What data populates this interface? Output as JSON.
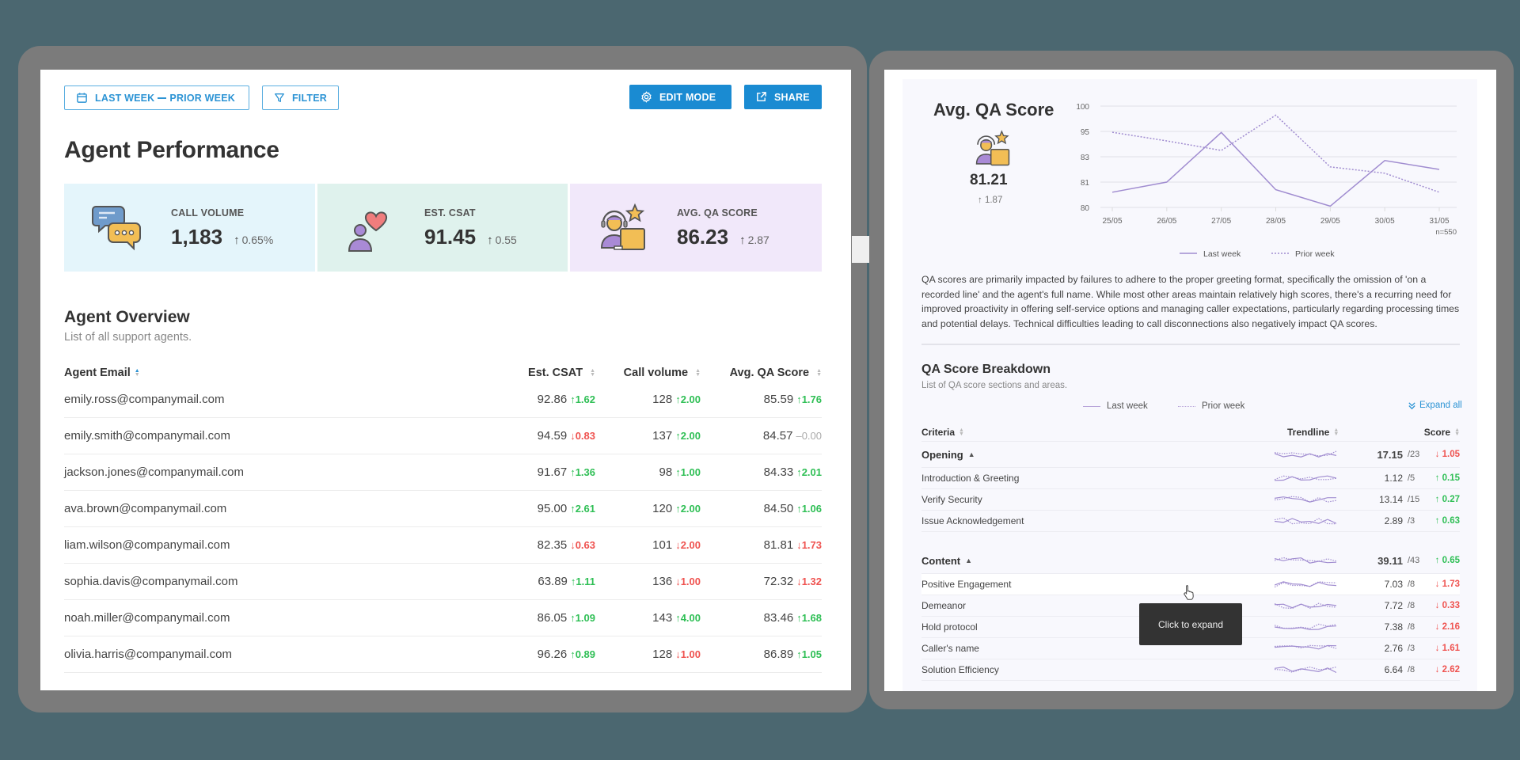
{
  "colors": {
    "accent": "#1a8bd2",
    "positive": "#2fbf55",
    "negative": "#ef5350",
    "neutral": "#aaaaaa",
    "chart_line": "#a08cd0",
    "kpi_call_volume_bg": "#e4f5fb",
    "kpi_csat_bg": "#dff2ed",
    "kpi_qa_bg": "#f1e8fa"
  },
  "toolbar": {
    "date_range_from": "LAST WEEK",
    "date_range_to": "PRIOR WEEK",
    "date_icon": "calendar-icon",
    "filter_label": "FILTER",
    "filter_icon": "funnel-icon",
    "edit_mode_label": "EDIT MODE",
    "edit_mode_icon": "gear-icon",
    "share_label": "SHARE",
    "share_icon": "external-link-icon"
  },
  "page": {
    "title": "Agent Performance"
  },
  "kpis": [
    {
      "label": "CALL VOLUME",
      "value": "1,183",
      "delta": "0.65%",
      "direction": "up",
      "icon": "chat-bubbles-icon"
    },
    {
      "label": "EST. CSAT",
      "value": "91.45",
      "delta": "0.55",
      "direction": "up",
      "icon": "person-heart-icon"
    },
    {
      "label": "AVG. QA SCORE",
      "value": "86.23",
      "delta": "2.87",
      "direction": "up",
      "icon": "agent-star-icon"
    }
  ],
  "overview": {
    "title": "Agent Overview",
    "subtitle": "List of all support agents.",
    "columns": [
      "Agent Email",
      "Est. CSAT",
      "Call volume",
      "Avg. QA Score"
    ],
    "rows": [
      {
        "email": "emily.ross@companymail.com",
        "csat": "92.86",
        "csat_d": "1.62",
        "csat_dir": "up",
        "vol": "128",
        "vol_d": "2.00",
        "vol_dir": "up",
        "qa": "85.59",
        "qa_d": "1.76",
        "qa_dir": "up"
      },
      {
        "email": "emily.smith@companymail.com",
        "csat": "94.59",
        "csat_d": "0.83",
        "csat_dir": "down",
        "vol": "137",
        "vol_d": "2.00",
        "vol_dir": "up",
        "qa": "84.57",
        "qa_d": "0.00",
        "qa_dir": "flat"
      },
      {
        "email": "jackson.jones@companymail.com",
        "csat": "91.67",
        "csat_d": "1.36",
        "csat_dir": "up",
        "vol": "98",
        "vol_d": "1.00",
        "vol_dir": "up",
        "qa": "84.33",
        "qa_d": "2.01",
        "qa_dir": "up"
      },
      {
        "email": "ava.brown@companymail.com",
        "csat": "95.00",
        "csat_d": "2.61",
        "csat_dir": "up",
        "vol": "120",
        "vol_d": "2.00",
        "vol_dir": "up",
        "qa": "84.50",
        "qa_d": "1.06",
        "qa_dir": "up"
      },
      {
        "email": "liam.wilson@companymail.com",
        "csat": "82.35",
        "csat_d": "0.63",
        "csat_dir": "down",
        "vol": "101",
        "vol_d": "2.00",
        "vol_dir": "down",
        "qa": "81.81",
        "qa_d": "1.73",
        "qa_dir": "down"
      },
      {
        "email": "sophia.davis@companymail.com",
        "csat": "63.89",
        "csat_d": "1.11",
        "csat_dir": "up",
        "vol": "136",
        "vol_d": "1.00",
        "vol_dir": "down",
        "qa": "72.32",
        "qa_d": "1.32",
        "qa_dir": "down"
      },
      {
        "email": "noah.miller@companymail.com",
        "csat": "86.05",
        "csat_d": "1.09",
        "csat_dir": "up",
        "vol": "143",
        "vol_d": "4.00",
        "vol_dir": "up",
        "qa": "83.46",
        "qa_d": "1.68",
        "qa_dir": "up"
      },
      {
        "email": "olivia.harris@companymail.com",
        "csat": "96.26",
        "csat_d": "0.89",
        "csat_dir": "up",
        "vol": "128",
        "vol_d": "1.00",
        "vol_dir": "down",
        "qa": "86.89",
        "qa_d": "1.05",
        "qa_dir": "up"
      }
    ]
  },
  "qa_panel": {
    "title": "Avg. QA Score",
    "value": "81.21",
    "delta": "1.87",
    "direction": "up",
    "icon": "agent-star-icon",
    "sample_size": "n=550",
    "summary": "QA scores are primarily impacted by failures to adhere to the proper greeting format, specifically the omission of 'on a recorded line' and the agent's full name. While most other areas maintain relatively high scores, there's a recurring need for improved proactivity in offering self-service options and managing caller expectations, particularly regarding processing times and potential delays. Technical difficulties leading to call disconnections also negatively impact QA scores."
  },
  "chart_data": {
    "type": "line",
    "title": "Avg. QA Score",
    "categories": [
      "25/05",
      "26/05",
      "27/05",
      "28/05",
      "29/05",
      "30/05",
      "31/05"
    ],
    "yticks": [
      100,
      95,
      83,
      81,
      80
    ],
    "ylim": [
      80,
      100
    ],
    "grid": true,
    "legend_position": "bottom",
    "annotation": "n=550",
    "series": [
      {
        "name": "Last week",
        "style": "solid",
        "values": [
          80.6,
          81.0,
          94.5,
          80.7,
          80.05,
          82.7,
          82.0
        ]
      },
      {
        "name": "Prior week",
        "style": "dotted",
        "values": [
          94.6,
          90.5,
          86.0,
          98.2,
          82.2,
          81.7,
          80.6
        ]
      }
    ]
  },
  "breakdown": {
    "title": "QA Score Breakdown",
    "subtitle": "List of QA score sections and areas.",
    "legend": {
      "last_week": "Last week",
      "prior_week": "Prior week"
    },
    "expand_all_label": "Expand all",
    "columns": {
      "criteria": "Criteria",
      "trendline": "Trendline",
      "score": "Score"
    },
    "groups": [
      {
        "name": "Opening",
        "score": "17.15",
        "max": "/23",
        "delta": "1.05",
        "dir": "down",
        "items": [
          {
            "name": "Introduction & Greeting",
            "score": "1.12",
            "max": "/5",
            "delta": "0.15",
            "dir": "up"
          },
          {
            "name": "Verify Security",
            "score": "13.14",
            "max": "/15",
            "delta": "0.27",
            "dir": "up"
          },
          {
            "name": "Issue Acknowledgement",
            "score": "2.89",
            "max": "/3",
            "delta": "0.63",
            "dir": "up"
          }
        ]
      },
      {
        "name": "Content",
        "score": "39.11",
        "max": "/43",
        "delta": "0.65",
        "dir": "up",
        "items": [
          {
            "name": "Positive Engagement",
            "score": "7.03",
            "max": "/8",
            "delta": "1.73",
            "dir": "down"
          },
          {
            "name": "Demeanor",
            "score": "7.72",
            "max": "/8",
            "delta": "0.33",
            "dir": "down"
          },
          {
            "name": "Hold protocol",
            "score": "7.38",
            "max": "/8",
            "delta": "2.16",
            "dir": "down"
          },
          {
            "name": "Caller's name",
            "score": "2.76",
            "max": "/3",
            "delta": "1.61",
            "dir": "down"
          },
          {
            "name": "Solution Efficiency",
            "score": "6.64",
            "max": "/8",
            "delta": "2.62",
            "dir": "down"
          }
        ]
      }
    ]
  },
  "tooltip": {
    "text": "Click to expand"
  }
}
